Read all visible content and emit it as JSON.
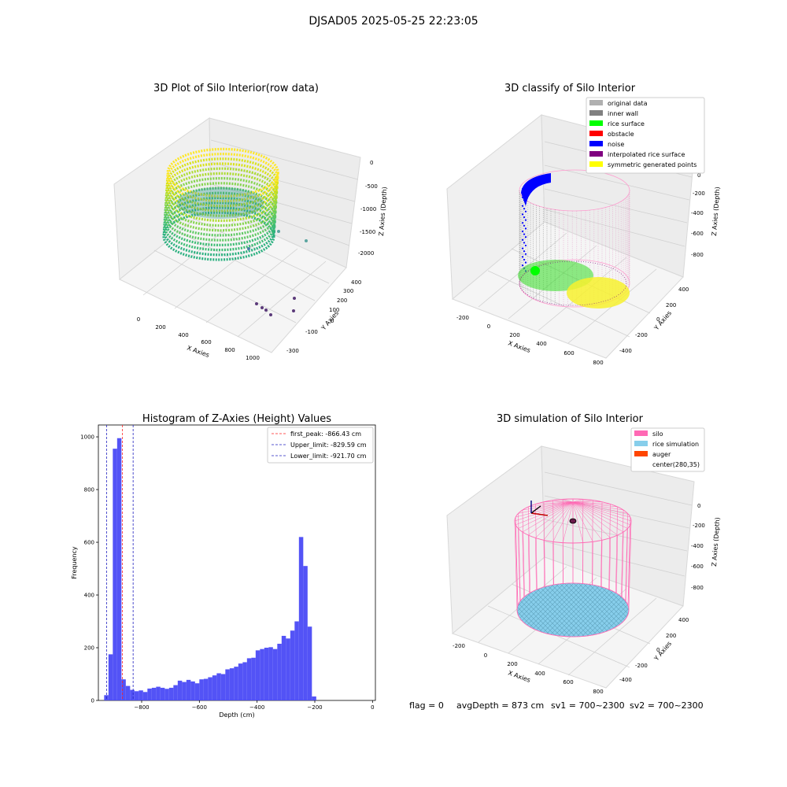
{
  "figure": {
    "suptitle": "DJSAD05 2025-05-25 22:23:05",
    "status": {
      "flag": "flag = 0",
      "avg_depth": "avgDepth = 873 cm",
      "sv1": "sv1 = 700~2300",
      "sv2": "sv2 = 700~2300"
    }
  },
  "chart_data": [
    {
      "type": "scatter",
      "projection": "3d",
      "title": "3D Plot of Silo Interior(row data)",
      "xlabel": "X Axies",
      "ylabel": "Y Axies",
      "zlabel": "Z Axies (Depth)",
      "x_ticks": [
        "0",
        "200",
        "400",
        "600",
        "800",
        "1000"
      ],
      "y_ticks": [
        "-300",
        "-100",
        "0",
        "100",
        "200",
        "300",
        "400"
      ],
      "z_ticks": [
        "0",
        "-500",
        "-1000",
        "-1500",
        "-2000"
      ],
      "colormap": "viridis",
      "grid": true,
      "description_points": "dense point cloud of silo wall rings colored by depth, with a few sparse outlier points"
    },
    {
      "type": "scatter",
      "projection": "3d",
      "title": "3D classify of Silo Interior",
      "xlabel": "X Axies",
      "ylabel": "Y Axies",
      "zlabel": "Z Axies (Depth)",
      "x_ticks": [
        "-200",
        "0",
        "200",
        "400",
        "600",
        "800"
      ],
      "y_ticks": [
        "-400",
        "-200",
        "0",
        "200",
        "400"
      ],
      "z_ticks": [
        "0",
        "-200",
        "-400",
        "-600",
        "-800"
      ],
      "grid": true,
      "legend_position": "top-right",
      "legend": [
        {
          "label": "original data",
          "color": "#b0b0b0"
        },
        {
          "label": "inner wall",
          "color": "#808080"
        },
        {
          "label": "rice surface",
          "color": "#00ff00"
        },
        {
          "label": "obstacle",
          "color": "#ff0000"
        },
        {
          "label": "noise",
          "color": "#0000ff"
        },
        {
          "label": "interpolated rice surface",
          "color": "#800080"
        },
        {
          "label": "symmetric generated points",
          "color": "#ffff00"
        }
      ]
    },
    {
      "type": "bar",
      "title": "Histogram of Z-Axies (Height) Values",
      "xlabel": "Depth (cm)",
      "ylabel": "Frequency",
      "xlim": [
        -950,
        10
      ],
      "ylim": [
        0,
        1045
      ],
      "x_ticks": [
        -800,
        -600,
        -400,
        -200,
        0
      ],
      "y_ticks": [
        0,
        200,
        400,
        600,
        800,
        1000
      ],
      "bar_color": "#4a4af5",
      "bin_width": 15,
      "bin_starts": [
        -930,
        -915,
        -900,
        -885,
        -870,
        -855,
        -840,
        -825,
        -810,
        -795,
        -780,
        -765,
        -750,
        -735,
        -720,
        -705,
        -690,
        -675,
        -660,
        -645,
        -630,
        -615,
        -600,
        -585,
        -570,
        -555,
        -540,
        -525,
        -510,
        -495,
        -480,
        -465,
        -450,
        -435,
        -420,
        -405,
        -390,
        -375,
        -360,
        -345,
        -330,
        -315,
        -300,
        -285,
        -270,
        -255,
        -240,
        -225,
        -210,
        -195,
        -180,
        -165,
        -150,
        -135,
        -120,
        -105,
        -90,
        -75,
        -60,
        -45,
        -30,
        -15
      ],
      "values": [
        20,
        175,
        955,
        995,
        80,
        55,
        40,
        35,
        38,
        32,
        45,
        48,
        52,
        48,
        44,
        48,
        58,
        75,
        70,
        78,
        72,
        65,
        80,
        82,
        88,
        95,
        103,
        100,
        118,
        122,
        128,
        140,
        145,
        160,
        162,
        190,
        195,
        200,
        202,
        195,
        215,
        245,
        235,
        265,
        300,
        620,
        510,
        280,
        15,
        0,
        0,
        0,
        0,
        0,
        0,
        0,
        0,
        0,
        0,
        0,
        0,
        0
      ],
      "vlines": [
        {
          "label": "first_peak: -866.43 cm",
          "x": -866.43,
          "color": "#ff2020",
          "style": "dashed"
        },
        {
          "label": "Upper_limit: -829.59 cm",
          "x": -829.59,
          "color": "#2020c0",
          "style": "dashed"
        },
        {
          "label": "Lower_limit: -921.70 cm",
          "x": -921.7,
          "color": "#2020c0",
          "style": "dashed"
        }
      ],
      "legend_position": "top-right",
      "grid": false
    },
    {
      "type": "other",
      "projection": "3d",
      "title": "3D simulation of Silo Interior",
      "xlabel": "X Axies",
      "ylabel": "Y Axies",
      "zlabel": "Z Axies (Depth)",
      "x_ticks": [
        "-200",
        "0",
        "200",
        "400",
        "600",
        "800"
      ],
      "y_ticks": [
        "-400",
        "-200",
        "0",
        "200",
        "400"
      ],
      "z_ticks": [
        "0",
        "-200",
        "-400",
        "-600",
        "-800"
      ],
      "grid": true,
      "legend_position": "top-right",
      "legend": [
        {
          "label": "silo",
          "color": "#ff69b4"
        },
        {
          "label": "rice simulation",
          "color": "#87ceeb"
        },
        {
          "label": "auger",
          "color": "#ff4500"
        },
        {
          "label": "center(280,35)",
          "color": ""
        }
      ]
    }
  ]
}
